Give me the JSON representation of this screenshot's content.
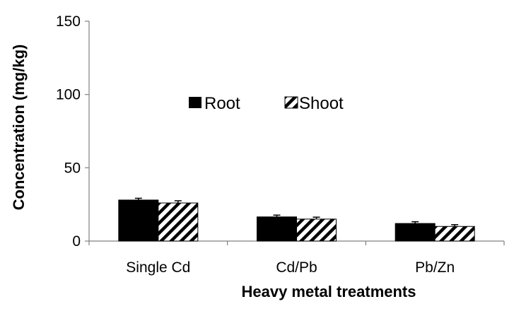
{
  "chart_data": {
    "type": "bar",
    "title": "",
    "xlabel": "Heavy metal treatments",
    "ylabel": "Concentration (mg/kg)",
    "categories": [
      "Single Cd",
      "Cd/Pb",
      "Pb/Zn"
    ],
    "ylim": [
      0,
      150
    ],
    "yticks": [
      0,
      50,
      100,
      150
    ],
    "grid": false,
    "legend_position": "top-center",
    "series": [
      {
        "name": "Root",
        "values": [
          28,
          16.5,
          12
        ],
        "errors": [
          1.2,
          1.2,
          1.2
        ],
        "fill": "solid",
        "color": "#000000"
      },
      {
        "name": "Shoot",
        "values": [
          26,
          15,
          10
        ],
        "errors": [
          1.5,
          1.3,
          1.2
        ],
        "fill": "diagonal-hatch",
        "color": "#000000"
      }
    ]
  }
}
